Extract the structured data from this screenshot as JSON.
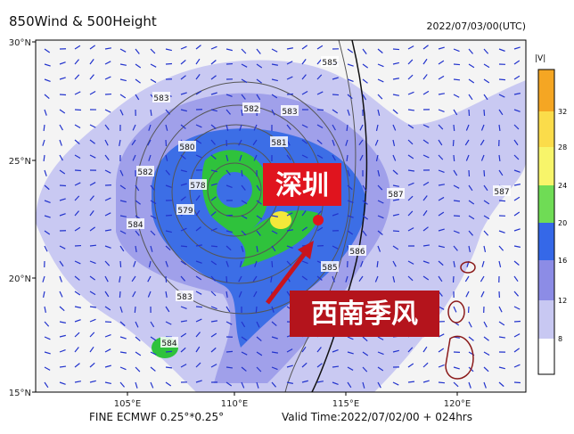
{
  "header": {
    "title": "850Wind & 500Height",
    "time": "2022/07/03/00(UTC)"
  },
  "map": {
    "lat_labels": [
      "30°N",
      "25°N",
      "20°N",
      "15°N"
    ],
    "lon_labels": [
      "105°E",
      "110°E",
      "115°E",
      "120°E"
    ],
    "contour_labels": [
      "585",
      "583",
      "582",
      "583",
      "581",
      "580",
      "582",
      "578",
      "579",
      "584",
      "583",
      "584",
      "585",
      "586",
      "587",
      "587"
    ]
  },
  "colorbar": {
    "title": "|V|",
    "labels": [
      "32",
      "28",
      "24",
      "20",
      "16",
      "12",
      "8"
    ]
  },
  "annotations": [
    "深圳",
    "西南季风"
  ],
  "footer": {
    "model": "FINE ECMWF 0.25°*0.25°",
    "valid": "Valid Time:2022/07/02/00 + 024hrs"
  }
}
